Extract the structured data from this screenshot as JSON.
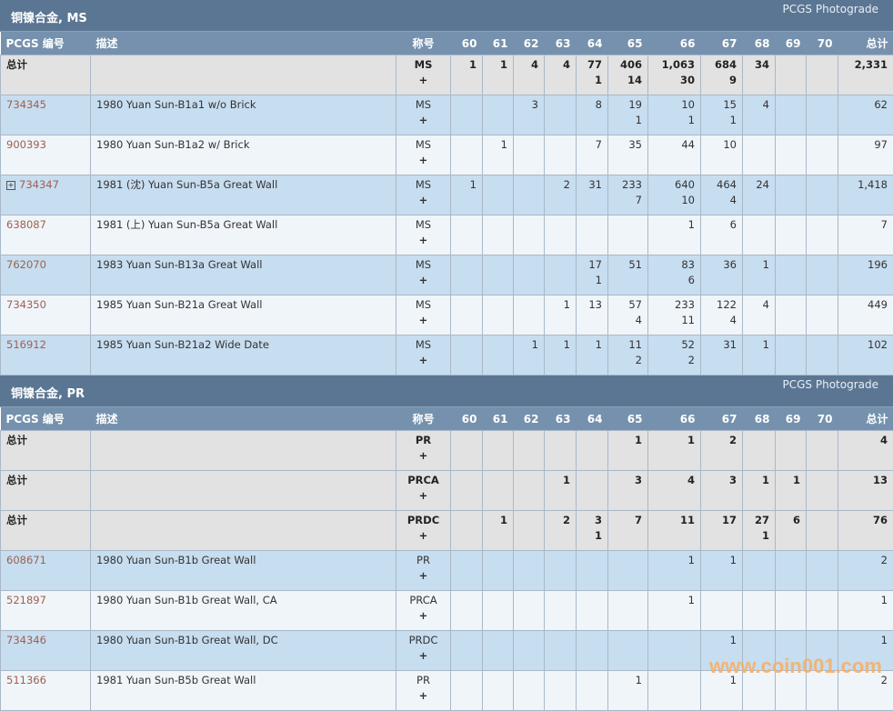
{
  "columns": {
    "pcgs": "PCGS 编号",
    "desc": "描述",
    "desig": "称号",
    "grades": [
      "60",
      "61",
      "62",
      "63",
      "64",
      "65",
      "66",
      "67",
      "68",
      "69",
      "70"
    ],
    "total": "总计"
  },
  "sections": [
    {
      "title": "铜镍合金, MS",
      "right": "PCGS Photograde",
      "rows": [
        {
          "type": "total",
          "pcgs": "总计",
          "desc": "",
          "desig": "MS",
          "plus": "+",
          "grades": [
            [
              "1",
              ""
            ],
            [
              "1",
              ""
            ],
            [
              "4",
              ""
            ],
            [
              "4",
              ""
            ],
            [
              "77",
              "1"
            ],
            [
              "406",
              "14"
            ],
            [
              "1,063",
              "30"
            ],
            [
              "684",
              "9"
            ],
            [
              "34",
              ""
            ],
            [
              "",
              ""
            ],
            [
              "",
              ""
            ]
          ],
          "total": "2,331"
        },
        {
          "type": "item",
          "pcgs": "734345",
          "desc": "1980 Yuan Sun-B1a1 w/o Brick",
          "desig": "MS",
          "plus": "+",
          "grades": [
            [
              "",
              ""
            ],
            [
              "",
              ""
            ],
            [
              "3",
              ""
            ],
            [
              "",
              ""
            ],
            [
              "8",
              ""
            ],
            [
              "19",
              "1"
            ],
            [
              "10",
              "1"
            ],
            [
              "15",
              "1"
            ],
            [
              "4",
              ""
            ],
            [
              "",
              ""
            ],
            [
              "",
              ""
            ]
          ],
          "total": "62"
        },
        {
          "type": "item",
          "pcgs": "900393",
          "desc": "1980 Yuan Sun-B1a2 w/ Brick",
          "desig": "MS",
          "plus": "+",
          "grades": [
            [
              "",
              ""
            ],
            [
              "1",
              ""
            ],
            [
              "",
              ""
            ],
            [
              "",
              ""
            ],
            [
              "7",
              ""
            ],
            [
              "35",
              ""
            ],
            [
              "44",
              ""
            ],
            [
              "10",
              ""
            ],
            [
              "",
              ""
            ],
            [
              "",
              ""
            ],
            [
              "",
              ""
            ]
          ],
          "total": "97"
        },
        {
          "type": "item",
          "expand": true,
          "pcgs": "734347",
          "desc": "1981 (沈) Yuan Sun-B5a Great Wall",
          "desig": "MS",
          "plus": "+",
          "grades": [
            [
              "1",
              ""
            ],
            [
              "",
              ""
            ],
            [
              "",
              ""
            ],
            [
              "2",
              ""
            ],
            [
              "31",
              ""
            ],
            [
              "233",
              "7"
            ],
            [
              "640",
              "10"
            ],
            [
              "464",
              "4"
            ],
            [
              "24",
              ""
            ],
            [
              "",
              ""
            ],
            [
              "",
              ""
            ]
          ],
          "total": "1,418"
        },
        {
          "type": "item",
          "pcgs": "638087",
          "desc": "1981 (上) Yuan Sun-B5a Great Wall",
          "desig": "MS",
          "plus": "+",
          "grades": [
            [
              "",
              ""
            ],
            [
              "",
              ""
            ],
            [
              "",
              ""
            ],
            [
              "",
              ""
            ],
            [
              "",
              ""
            ],
            [
              "",
              ""
            ],
            [
              "1",
              ""
            ],
            [
              "6",
              ""
            ],
            [
              "",
              ""
            ],
            [
              "",
              ""
            ],
            [
              "",
              ""
            ]
          ],
          "total": "7"
        },
        {
          "type": "item",
          "pcgs": "762070",
          "desc": "1983 Yuan Sun-B13a Great Wall",
          "desig": "MS",
          "plus": "+",
          "grades": [
            [
              "",
              ""
            ],
            [
              "",
              ""
            ],
            [
              "",
              ""
            ],
            [
              "",
              ""
            ],
            [
              "17",
              "1"
            ],
            [
              "51",
              ""
            ],
            [
              "83",
              "6"
            ],
            [
              "36",
              ""
            ],
            [
              "1",
              ""
            ],
            [
              "",
              ""
            ],
            [
              "",
              ""
            ]
          ],
          "total": "196"
        },
        {
          "type": "item",
          "pcgs": "734350",
          "desc": "1985 Yuan Sun-B21a Great Wall",
          "desig": "MS",
          "plus": "+",
          "grades": [
            [
              "",
              ""
            ],
            [
              "",
              ""
            ],
            [
              "",
              ""
            ],
            [
              "1",
              ""
            ],
            [
              "13",
              ""
            ],
            [
              "57",
              "4"
            ],
            [
              "233",
              "11"
            ],
            [
              "122",
              "4"
            ],
            [
              "4",
              ""
            ],
            [
              "",
              ""
            ],
            [
              "",
              ""
            ]
          ],
          "total": "449"
        },
        {
          "type": "item",
          "pcgs": "516912",
          "desc": "1985 Yuan Sun-B21a2 Wide Date",
          "desig": "MS",
          "plus": "+",
          "grades": [
            [
              "",
              ""
            ],
            [
              "",
              ""
            ],
            [
              "1",
              ""
            ],
            [
              "1",
              ""
            ],
            [
              "1",
              ""
            ],
            [
              "11",
              "2"
            ],
            [
              "52",
              "2"
            ],
            [
              "31",
              ""
            ],
            [
              "1",
              ""
            ],
            [
              "",
              ""
            ],
            [
              "",
              ""
            ]
          ],
          "total": "102"
        }
      ]
    },
    {
      "title": "铜镍合金, PR",
      "right": "PCGS Photograde",
      "rows": [
        {
          "type": "total",
          "pcgs": "总计",
          "desc": "",
          "desig": "PR",
          "plus": "+",
          "grades": [
            [
              "",
              ""
            ],
            [
              "",
              ""
            ],
            [
              "",
              ""
            ],
            [
              "",
              ""
            ],
            [
              "",
              ""
            ],
            [
              "1",
              ""
            ],
            [
              "1",
              ""
            ],
            [
              "2",
              ""
            ],
            [
              "",
              ""
            ],
            [
              "",
              ""
            ],
            [
              "",
              ""
            ]
          ],
          "total": "4"
        },
        {
          "type": "total",
          "pcgs": "总计",
          "desc": "",
          "desig": "PRCA",
          "plus": "+",
          "grades": [
            [
              "",
              ""
            ],
            [
              "",
              ""
            ],
            [
              "",
              ""
            ],
            [
              "1",
              ""
            ],
            [
              "",
              ""
            ],
            [
              "3",
              ""
            ],
            [
              "4",
              ""
            ],
            [
              "3",
              ""
            ],
            [
              "1",
              ""
            ],
            [
              "1",
              ""
            ],
            [
              "",
              ""
            ]
          ],
          "total": "13"
        },
        {
          "type": "total",
          "pcgs": "总计",
          "desc": "",
          "desig": "PRDC",
          "plus": "+",
          "grades": [
            [
              "",
              ""
            ],
            [
              "1",
              ""
            ],
            [
              "",
              ""
            ],
            [
              "2",
              ""
            ],
            [
              "3",
              "1"
            ],
            [
              "7",
              ""
            ],
            [
              "11",
              ""
            ],
            [
              "17",
              ""
            ],
            [
              "27",
              "1"
            ],
            [
              "6",
              ""
            ],
            [
              "",
              ""
            ]
          ],
          "total": "76"
        },
        {
          "type": "item",
          "pcgs": "608671",
          "desc": "1980 Yuan Sun-B1b Great Wall",
          "desig": "PR",
          "plus": "+",
          "grades": [
            [
              "",
              ""
            ],
            [
              "",
              ""
            ],
            [
              "",
              ""
            ],
            [
              "",
              ""
            ],
            [
              "",
              ""
            ],
            [
              "",
              ""
            ],
            [
              "1",
              ""
            ],
            [
              "1",
              ""
            ],
            [
              "",
              ""
            ],
            [
              "",
              ""
            ],
            [
              "",
              ""
            ]
          ],
          "total": "2"
        },
        {
          "type": "item",
          "pcgs": "521897",
          "desc": "1980 Yuan Sun-B1b Great Wall, CA",
          "desig": "PRCA",
          "plus": "+",
          "grades": [
            [
              "",
              ""
            ],
            [
              "",
              ""
            ],
            [
              "",
              ""
            ],
            [
              "",
              ""
            ],
            [
              "",
              ""
            ],
            [
              "",
              ""
            ],
            [
              "1",
              ""
            ],
            [
              "",
              ""
            ],
            [
              "",
              ""
            ],
            [
              "",
              ""
            ],
            [
              "",
              ""
            ]
          ],
          "total": "1"
        },
        {
          "type": "item",
          "pcgs": "734346",
          "desc": "1980 Yuan Sun-B1b Great Wall, DC",
          "desig": "PRDC",
          "plus": "+",
          "grades": [
            [
              "",
              ""
            ],
            [
              "",
              ""
            ],
            [
              "",
              ""
            ],
            [
              "",
              ""
            ],
            [
              "",
              ""
            ],
            [
              "",
              ""
            ],
            [
              "",
              ""
            ],
            [
              "1",
              ""
            ],
            [
              "",
              ""
            ],
            [
              "",
              ""
            ],
            [
              "",
              ""
            ]
          ],
          "total": "1"
        },
        {
          "type": "item",
          "pcgs": "511366",
          "desc": "1981 Yuan Sun-B5b Great Wall",
          "desig": "PR",
          "plus": "+",
          "grades": [
            [
              "",
              ""
            ],
            [
              "",
              ""
            ],
            [
              "",
              ""
            ],
            [
              "",
              ""
            ],
            [
              "",
              ""
            ],
            [
              "1",
              ""
            ],
            [
              "",
              ""
            ],
            [
              "1",
              ""
            ],
            [
              "",
              ""
            ],
            [
              "",
              ""
            ],
            [
              "",
              ""
            ]
          ],
          "total": "2"
        }
      ]
    }
  ],
  "watermark": "www.coin001.com"
}
